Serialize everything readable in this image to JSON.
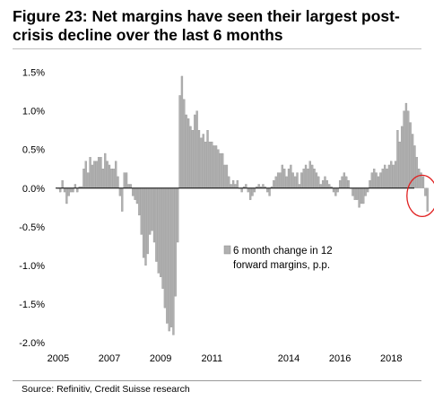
{
  "figure": {
    "title": "Figure 23: Net margins have seen their largest post-crisis decline over the last 6 months",
    "source": "Source: Refinitiv, Credit Suisse research"
  },
  "colors": {
    "bar": "#b0b0b0",
    "bar_stroke": "#8c8c8c",
    "axis": "#000000",
    "highlight_circle": "#e02020"
  },
  "chart_data": {
    "type": "bar",
    "title": "",
    "xlabel": "",
    "ylabel": "",
    "ylim": [
      -2.0,
      1.6
    ],
    "y_ticks": [
      1.5,
      1.0,
      0.5,
      0.0,
      -0.5,
      -1.0,
      -1.5,
      -2.0
    ],
    "y_tick_labels": [
      "1.5%",
      "1.0%",
      "0.5%",
      "0.0%",
      "-0.5%",
      "-1.0%",
      "-1.5%",
      "-2.0%"
    ],
    "x_ticks": [
      2005,
      2007,
      2009,
      2011,
      2014,
      2016,
      2018
    ],
    "x_tick_labels": [
      "2005",
      "2007",
      "2009",
      "2011",
      "2014",
      "2016",
      "2018"
    ],
    "x_range": [
      2004.9,
      2018.9
    ],
    "frequency": "monthly",
    "grid": false,
    "legend": {
      "position": "middle-right",
      "entries": [
        "6 month change in 12 forward margins, p.p."
      ]
    },
    "annotation": "red circle highlighting the latest negative readings",
    "series": [
      {
        "name": "6 month change in 12 forward margins, p.p.",
        "start": "2005-01",
        "values": [
          0.0,
          -0.05,
          0.1,
          -0.05,
          -0.2,
          -0.1,
          -0.05,
          -0.05,
          0.05,
          -0.05,
          0.02,
          0.02,
          0.25,
          0.35,
          0.2,
          0.4,
          0.3,
          0.35,
          0.35,
          0.4,
          0.4,
          0.25,
          0.45,
          0.35,
          0.3,
          0.25,
          0.25,
          0.35,
          0.15,
          -0.1,
          -0.3,
          0.2,
          0.2,
          0.05,
          0.05,
          -0.1,
          -0.15,
          -0.2,
          -0.35,
          -0.6,
          -0.9,
          -1.0,
          -0.85,
          -0.6,
          -0.55,
          -0.7,
          -0.95,
          -1.1,
          -1.15,
          -1.3,
          -1.55,
          -1.75,
          -1.85,
          -1.8,
          -1.9,
          -1.4,
          -0.7,
          1.2,
          1.45,
          1.15,
          0.95,
          0.9,
          0.8,
          0.75,
          0.95,
          1.0,
          0.75,
          0.65,
          0.7,
          0.6,
          0.75,
          0.6,
          0.6,
          0.55,
          0.55,
          0.5,
          0.45,
          0.45,
          0.3,
          0.3,
          0.15,
          0.05,
          0.1,
          0.05,
          0.1,
          0.0,
          -0.05,
          0.02,
          0.05,
          -0.05,
          -0.15,
          -0.1,
          -0.05,
          0.02,
          0.05,
          0.02,
          0.05,
          0.02,
          -0.05,
          -0.1,
          0.02,
          0.1,
          0.15,
          0.2,
          0.2,
          0.3,
          0.25,
          0.15,
          0.25,
          0.3,
          0.2,
          0.15,
          0.2,
          0.05,
          0.2,
          0.25,
          0.3,
          0.25,
          0.35,
          0.3,
          0.25,
          0.2,
          0.15,
          0.05,
          0.1,
          0.15,
          0.1,
          0.05,
          0.02,
          -0.05,
          -0.1,
          -0.05,
          0.1,
          0.15,
          0.2,
          0.15,
          0.1,
          0.0,
          -0.1,
          -0.15,
          -0.15,
          -0.25,
          -0.2,
          -0.2,
          -0.1,
          -0.05,
          0.1,
          0.2,
          0.25,
          0.2,
          0.15,
          0.2,
          0.25,
          0.3,
          0.25,
          0.3,
          0.35,
          0.3,
          0.35,
          0.75,
          0.6,
          0.8,
          1.0,
          1.1,
          1.0,
          0.85,
          0.7,
          0.55,
          0.4,
          0.25,
          0.2,
          0.15,
          -0.1,
          -0.3
        ]
      }
    ]
  }
}
